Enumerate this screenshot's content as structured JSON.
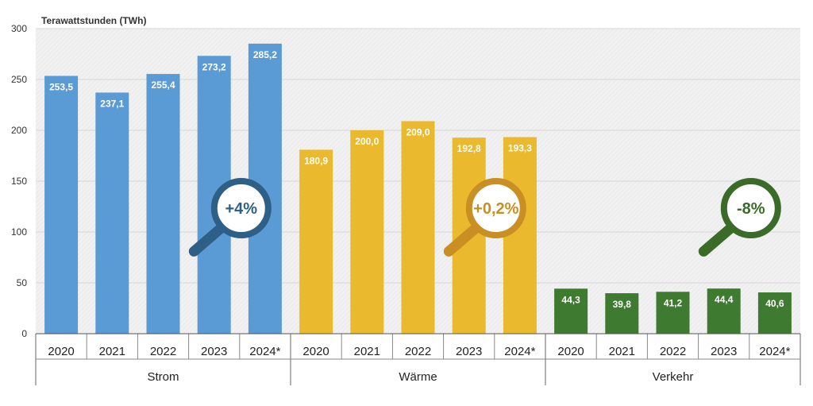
{
  "chart_data": {
    "type": "bar",
    "ylabel": "Terawattstunden (TWh)",
    "ylim": [
      0,
      300
    ],
    "yticks": [
      0,
      50,
      100,
      150,
      200,
      250,
      300
    ],
    "groups": [
      {
        "name": "Strom",
        "color": "#5b9bd5",
        "change": "+4%",
        "badge_color": "#2e5f87",
        "categories": [
          "2020",
          "2021",
          "2022",
          "2023",
          "2024*"
        ],
        "values": [
          253.5,
          237.1,
          255.4,
          273.2,
          285.2
        ],
        "labels": [
          "253,5",
          "237,1",
          "255,4",
          "273,2",
          "285,2"
        ]
      },
      {
        "name": "Wärme",
        "color": "#eab92e",
        "change": "+0,2%",
        "badge_color": "#c98f23",
        "categories": [
          "2020",
          "2021",
          "2022",
          "2023",
          "2024*"
        ],
        "values": [
          180.9,
          200.0,
          209.0,
          192.8,
          193.3
        ],
        "labels": [
          "180,9",
          "200,0",
          "209,0",
          "192,8",
          "193,3"
        ]
      },
      {
        "name": "Verkehr",
        "color": "#3e7a2f",
        "change": "-8%",
        "badge_color": "#3a6b28",
        "categories": [
          "2020",
          "2021",
          "2022",
          "2023",
          "2024*"
        ],
        "values": [
          44.3,
          39.8,
          41.2,
          44.4,
          40.6
        ],
        "labels": [
          "44,3",
          "39,8",
          "41,2",
          "44,4",
          "40,6"
        ]
      }
    ]
  }
}
